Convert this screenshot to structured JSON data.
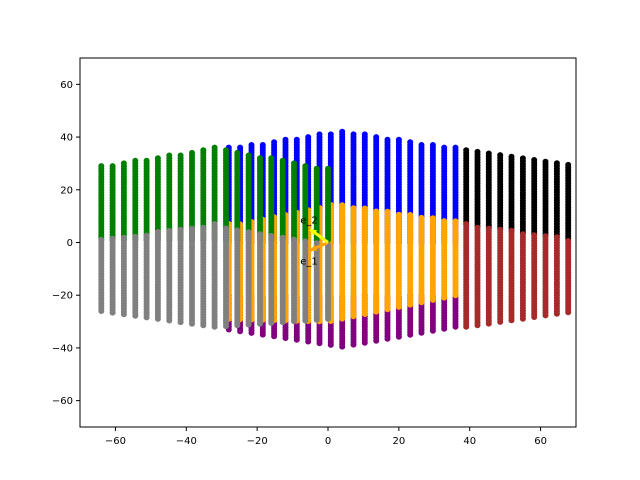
{
  "chart_data": {
    "type": "scatter",
    "title": "",
    "xlabel": "",
    "ylabel": "",
    "xlim": [
      -70,
      70
    ],
    "ylim": [
      -70,
      70
    ],
    "xticks": [
      -60,
      -40,
      -20,
      0,
      20,
      40,
      60
    ],
    "yticks": [
      -60,
      -40,
      -20,
      0,
      20,
      40,
      60
    ],
    "xtick_labels": [
      "−60",
      "−40",
      "−20",
      "0",
      "20",
      "40",
      "60"
    ],
    "ytick_labels": [
      "−60",
      "−40",
      "−20",
      "0",
      "20",
      "40",
      "60"
    ],
    "grid": false,
    "legend": "none",
    "column_spacing": 3.2,
    "point_step": 1.0,
    "regions": [
      {
        "color": "#0000ff",
        "x_start": -28,
        "x_end": 36,
        "top_left": 36,
        "top_peak": 42.5,
        "peak_x": 4,
        "top_right": 36,
        "bottom": 0
      },
      {
        "color": "#000000",
        "x_start": 39,
        "x_end": 70,
        "top_left": 35,
        "top_right": 29,
        "bottom_left": 7,
        "bottom_right": 1
      },
      {
        "color": "#a52a2a",
        "x_start": 39,
        "x_end": 70,
        "top_left": 7,
        "top_right": 1,
        "bottom_left": -32,
        "bottom_right": -26
      },
      {
        "color": "#800080",
        "x_start": -28,
        "x_end": 36,
        "top_left": -20,
        "top_right": -20,
        "bottom_left": -33,
        "bottom_peak": -39.5,
        "peak_x": 4,
        "bottom_right": -32
      },
      {
        "color": "#ffa500",
        "x_start": -28,
        "x_end": 36,
        "top_left": 7,
        "top_right": 8,
        "top_mid": 15,
        "mid_x": 2,
        "bottom_left": -29,
        "bottom_right": -20,
        "bottom_mid": -30,
        "mid_x2": 0
      },
      {
        "color": "#008000",
        "x_start": -64,
        "x_end": 0,
        "top_left": 29,
        "top_right": 28,
        "top_peak": 36,
        "peak_x": -32,
        "bottom": 1
      },
      {
        "color": "#808080",
        "x_start": -64,
        "x_end": 0,
        "top_left": 1,
        "top_right": -1,
        "top_peak": 7,
        "peak_x": -32,
        "bottom_left": -26,
        "bottom_right": -29,
        "bottom_peak": -32,
        "peak_x2": -32
      }
    ],
    "vectors": [
      {
        "label": "e_1",
        "color": "#ffa500",
        "from": [
          0,
          0
        ],
        "to": [
          -5,
          -3
        ]
      },
      {
        "label": "e_2",
        "color": "#ffff00",
        "from": [
          0,
          0
        ],
        "to": [
          -5,
          5
        ]
      }
    ]
  }
}
